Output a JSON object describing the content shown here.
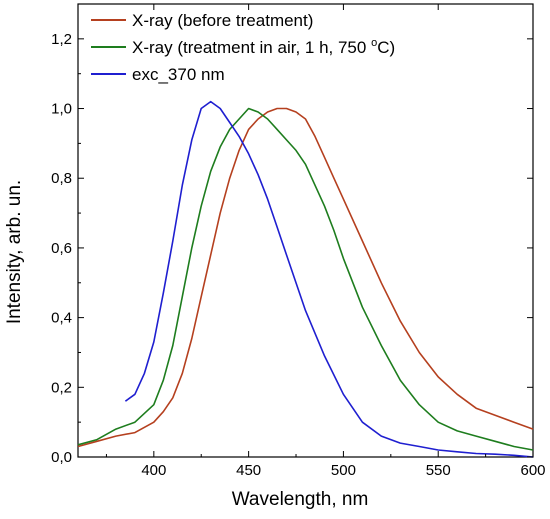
{
  "chart_data": {
    "type": "line",
    "title": "",
    "xlabel": "Wavelength, nm",
    "ylabel": "Intensity, arb. un.",
    "xlim": [
      360,
      600
    ],
    "ylim": [
      0,
      1.3
    ],
    "xticks": [
      "400",
      "450",
      "500",
      "550",
      "600"
    ],
    "yticks": [
      "0,0",
      "0,2",
      "0,4",
      "0,6",
      "0,8",
      "1,0",
      "1,2"
    ],
    "grid": false,
    "legend_position": "top-left",
    "legend": [
      {
        "label": "X-ray (before treatment)",
        "color": "#b5401f"
      },
      {
        "label": "X-ray (treatment in air, 1 h, 750 ",
        "sup": "o",
        "tail": "C)",
        "color": "#1e7d1e"
      },
      {
        "label": "exc_370 nm",
        "color": "#1f1fd0"
      }
    ],
    "series": [
      {
        "name": "X-ray (before treatment)",
        "color": "#b5401f",
        "x": [
          360,
          370,
          380,
          390,
          400,
          405,
          410,
          415,
          420,
          425,
          430,
          435,
          440,
          445,
          450,
          455,
          460,
          465,
          470,
          475,
          480,
          485,
          490,
          495,
          500,
          510,
          520,
          530,
          540,
          550,
          560,
          570,
          580,
          590,
          600
        ],
        "y": [
          0.03,
          0.045,
          0.06,
          0.07,
          0.1,
          0.13,
          0.17,
          0.24,
          0.34,
          0.46,
          0.58,
          0.7,
          0.8,
          0.88,
          0.94,
          0.97,
          0.99,
          1.0,
          1.0,
          0.99,
          0.97,
          0.92,
          0.86,
          0.8,
          0.74,
          0.62,
          0.5,
          0.39,
          0.3,
          0.23,
          0.18,
          0.14,
          0.12,
          0.1,
          0.08
        ]
      },
      {
        "name": "X-ray (treatment in air, 1 h, 750 oC)",
        "color": "#1e7d1e",
        "x": [
          360,
          370,
          380,
          390,
          400,
          405,
          410,
          415,
          420,
          425,
          430,
          435,
          440,
          445,
          450,
          455,
          460,
          465,
          470,
          475,
          480,
          485,
          490,
          495,
          500,
          510,
          520,
          530,
          540,
          550,
          560,
          570,
          580,
          590,
          600
        ],
        "y": [
          0.035,
          0.05,
          0.08,
          0.1,
          0.15,
          0.22,
          0.32,
          0.46,
          0.6,
          0.72,
          0.82,
          0.89,
          0.94,
          0.97,
          1.0,
          0.99,
          0.97,
          0.94,
          0.91,
          0.88,
          0.84,
          0.78,
          0.72,
          0.65,
          0.57,
          0.43,
          0.32,
          0.22,
          0.15,
          0.1,
          0.075,
          0.06,
          0.045,
          0.03,
          0.02
        ]
      },
      {
        "name": "exc_370 nm",
        "color": "#1f1fd0",
        "x": [
          385,
          390,
          395,
          400,
          405,
          410,
          415,
          420,
          425,
          430,
          435,
          440,
          445,
          450,
          455,
          460,
          465,
          470,
          475,
          480,
          490,
          500,
          510,
          520,
          530,
          540,
          550,
          560,
          570,
          580,
          590,
          600
        ],
        "y": [
          0.16,
          0.18,
          0.24,
          0.33,
          0.47,
          0.62,
          0.78,
          0.91,
          1.0,
          1.02,
          1.0,
          0.96,
          0.92,
          0.87,
          0.81,
          0.74,
          0.66,
          0.58,
          0.5,
          0.42,
          0.29,
          0.18,
          0.1,
          0.06,
          0.04,
          0.03,
          0.02,
          0.015,
          0.01,
          0.008,
          0.005,
          0.0
        ]
      }
    ]
  }
}
